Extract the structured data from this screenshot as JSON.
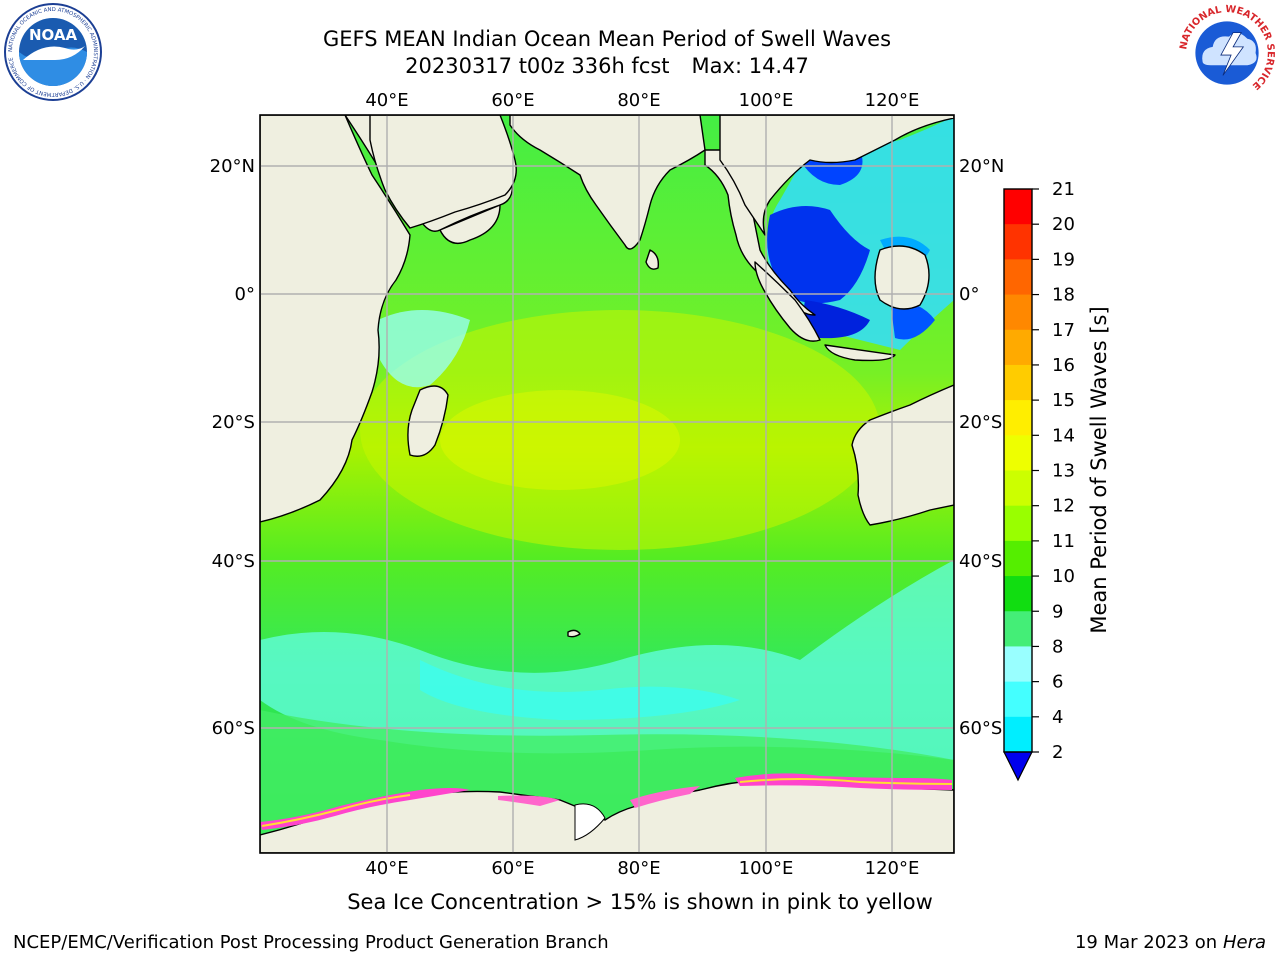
{
  "header": {
    "title": "GEFS MEAN Indian Ocean Mean Period of Swell Waves",
    "run": "20230317 t00z 336h fcst",
    "max_label": "Max: 14.47"
  },
  "logos": {
    "noaa": {
      "text": "NOAA",
      "ring": "NATIONAL OCEANIC AND ATMOSPHERIC ADMINISTRATION · U.S. DEPARTMENT OF COMMERCE"
    },
    "nws": {
      "ring": "NATIONAL WEATHER SERVICE"
    }
  },
  "map": {
    "lon_labels": [
      "40°E",
      "60°E",
      "80°E",
      "100°E",
      "120°E"
    ],
    "lat_labels": [
      "20°N",
      "0°",
      "20°S",
      "40°S",
      "60°S"
    ],
    "colors": {
      "land": "#efefe0",
      "grid": "#b0b0b0",
      "ice": "#ff33cc"
    }
  },
  "colorbar": {
    "label": "Mean Period of Swell Waves [s]",
    "ticks": [
      "21",
      "20",
      "19",
      "18",
      "17",
      "16",
      "15",
      "14",
      "13",
      "12",
      "11",
      "10",
      "9",
      "8",
      "6",
      "4",
      "2"
    ],
    "colors": [
      "#ff0000",
      "#ff3300",
      "#ff6600",
      "#ff8800",
      "#ffaa00",
      "#ffcc00",
      "#ffee00",
      "#eeff00",
      "#ccff00",
      "#99ff00",
      "#55ee00",
      "#11dd11",
      "#44ee77",
      "#99ffff",
      "#44ffff",
      "#00eeff",
      "#00aaff",
      "#0044ff"
    ],
    "under_color": "#0000ee"
  },
  "footer": {
    "note": "Sea Ice Concentration > 15% is shown in pink to yellow",
    "credit": "NCEP/EMC/Verification Post Processing Product Generation Branch",
    "date": "19 Mar 2023 on",
    "host": "Hera"
  }
}
